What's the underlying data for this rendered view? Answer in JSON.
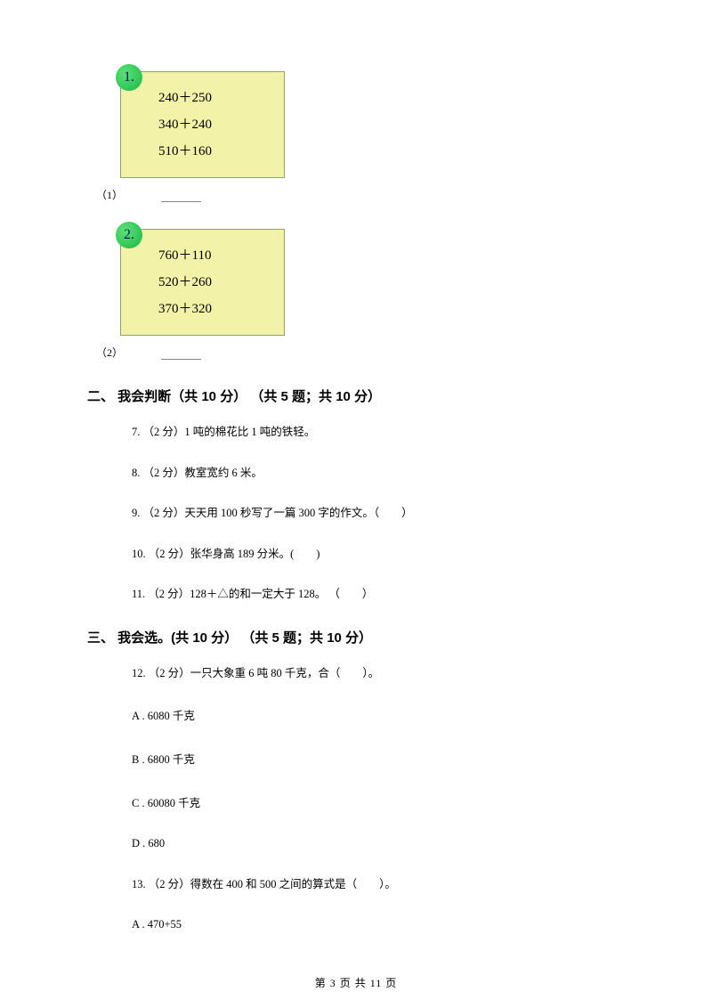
{
  "box1": {
    "badge": "1.",
    "line1": "240＋250",
    "line2": "340＋240",
    "line3": "510＋160",
    "badge_bg": "#17b847",
    "box_bg": "#f2f2a8"
  },
  "sub1": "（1）",
  "box2": {
    "badge": "2.",
    "line1": "760＋110",
    "line2": "520＋260",
    "line3": "370＋320"
  },
  "sub2": "（2）",
  "section2": "二、 我会判断（共 10 分） （共 5 题；共 10 分）",
  "q7": "7. （2 分）1 吨的棉花比 1 吨的铁轻。",
  "q8": "8. （2 分）教室宽约 6 米。",
  "q9": "9. （2 分）天天用 100 秒写了一篇 300 字的作文。（　　）",
  "q10": "10. （2 分）张华身高 189 分米。(　　)",
  "q11": "11. （2 分）128＋△的和一定大于 128。 （　　）",
  "section3": "三、 我会选。(共 10 分） （共 5 题；共 10 分）",
  "q12": "12. （2 分）一只大象重 6 吨 80 千克，合（　　）。",
  "q12a": "A . 6080 千克",
  "q12b": "B . 6800 千克",
  "q12c": "C . 60080 千克",
  "q12d": "D . 680",
  "q13": "13. （2 分）得数在 400 和 500 之间的算式是（　　）。",
  "q13a": "A . 470+55",
  "footer": "第 3 页 共 11 页"
}
